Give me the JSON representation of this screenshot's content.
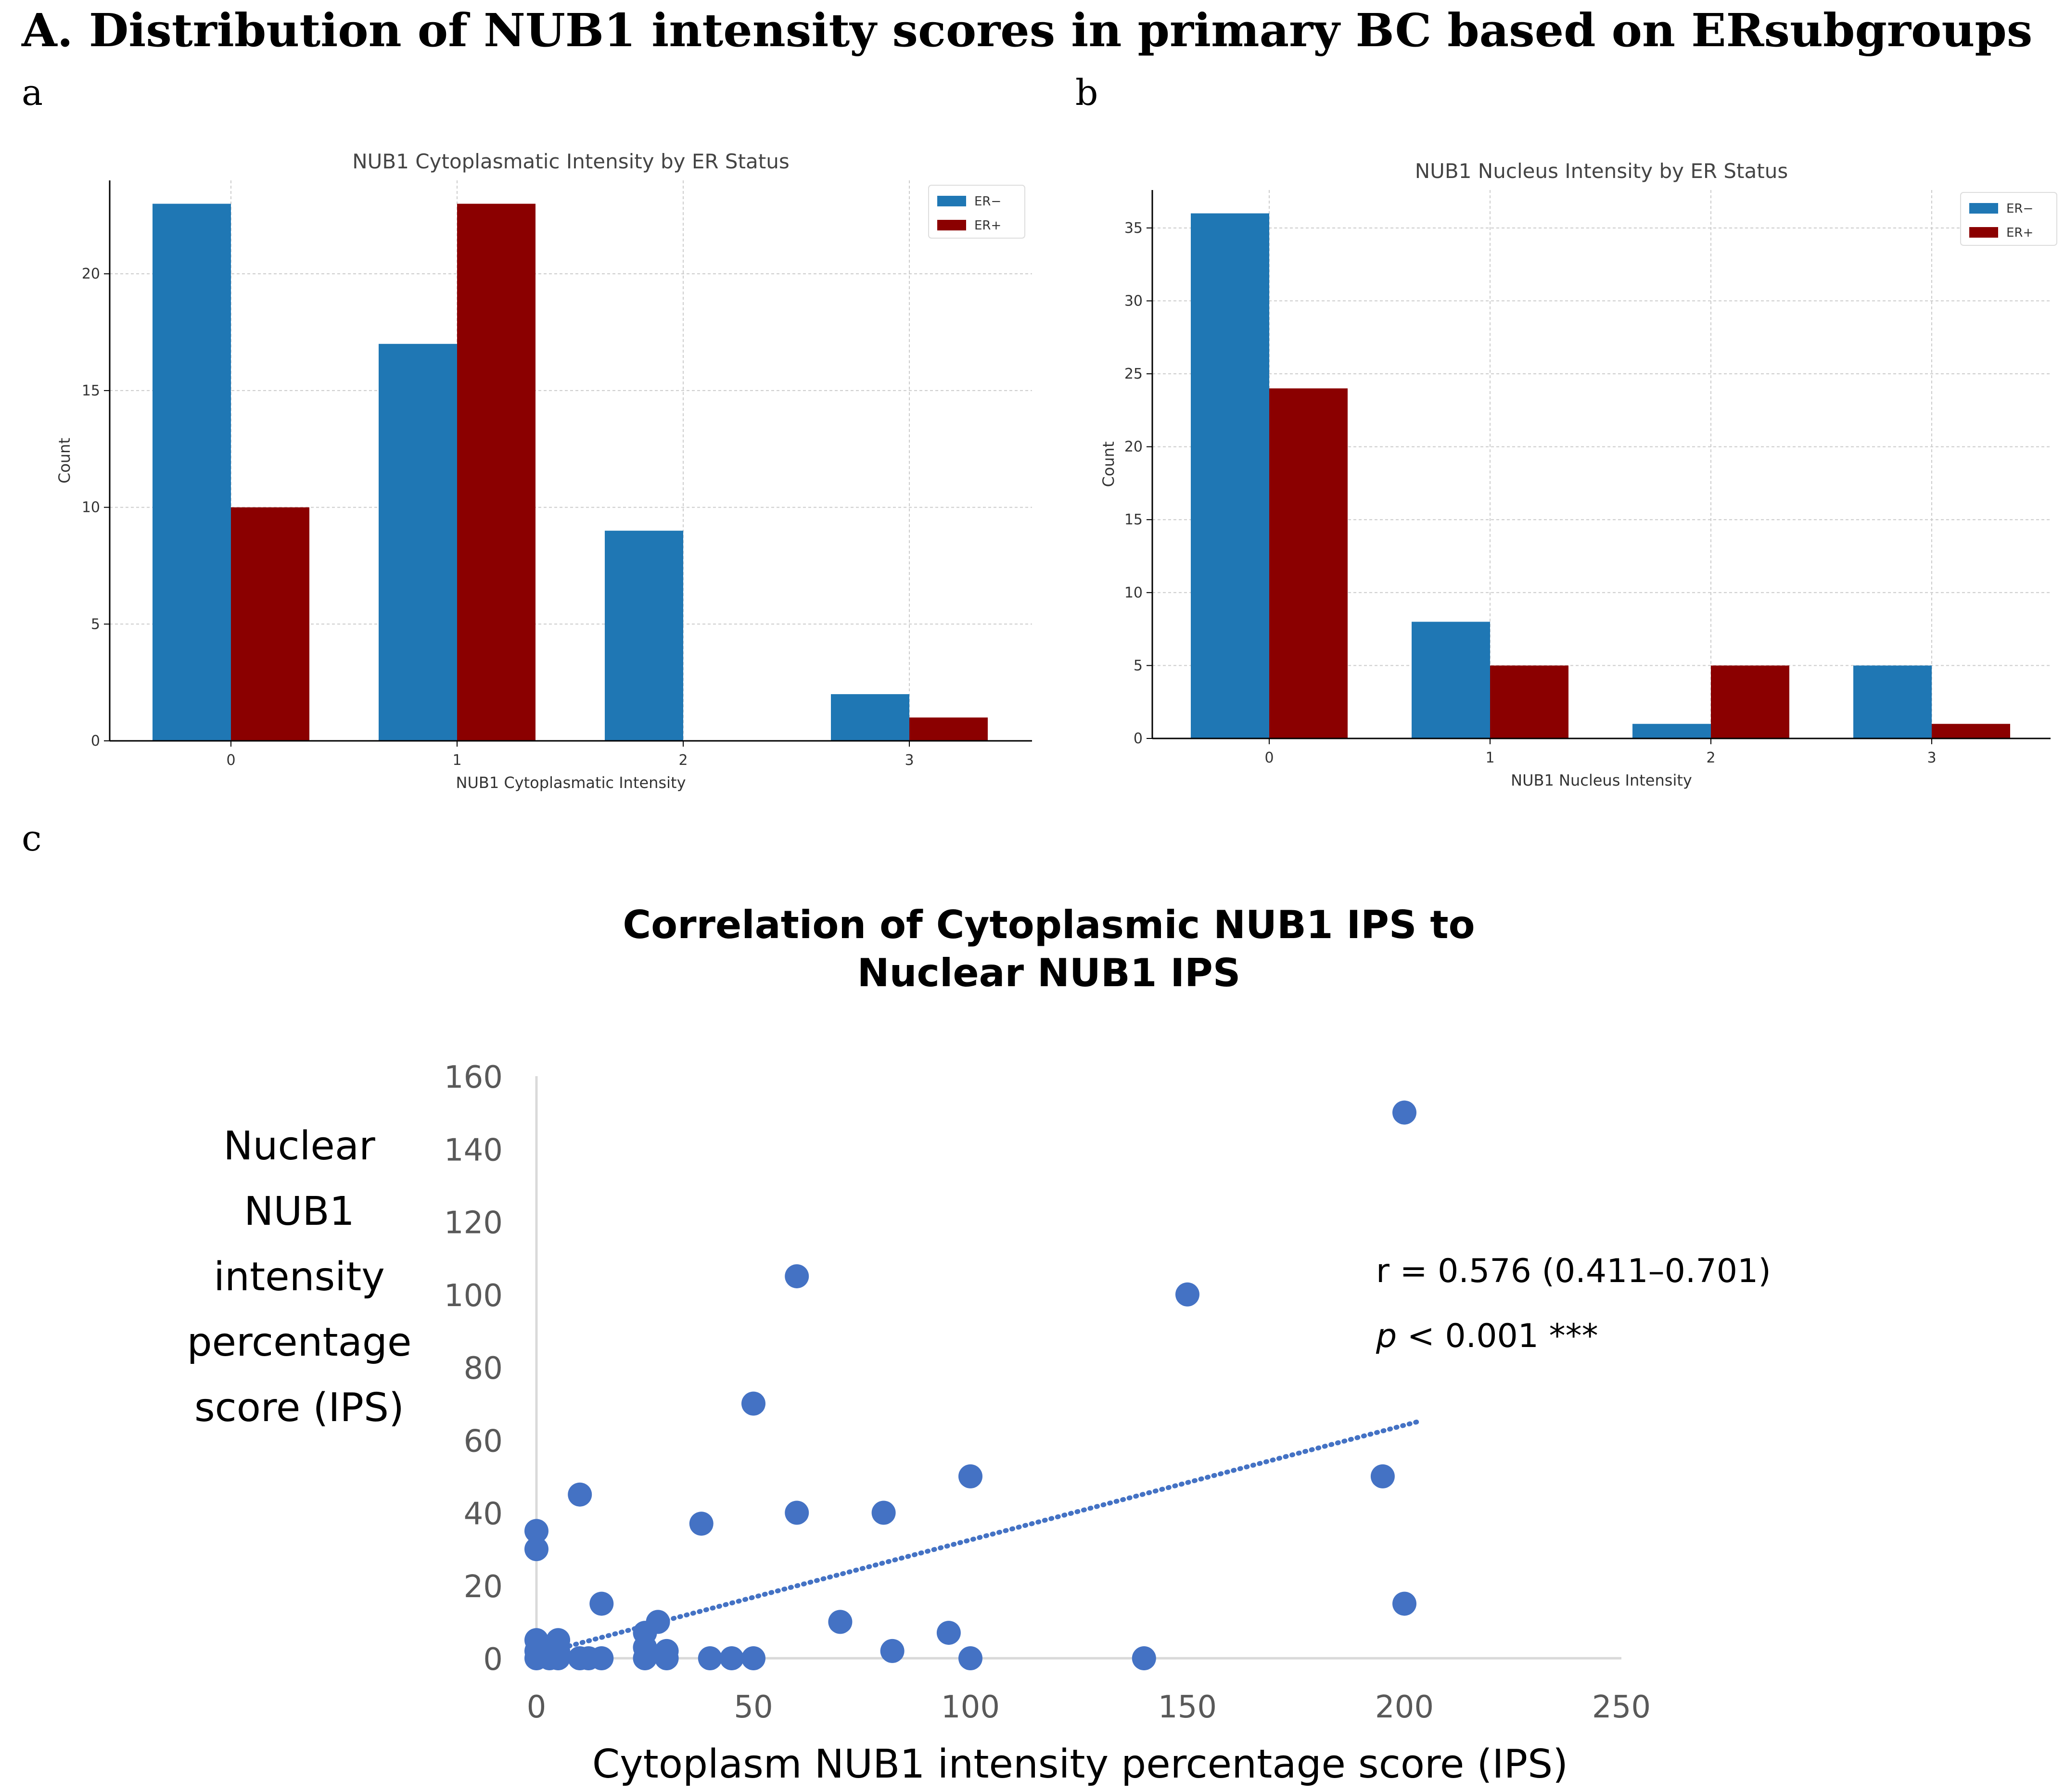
{
  "figure_title": "A. Distribution of NUB1 intensity scores in primary BC based on ERsubgroups",
  "panel_labels": {
    "a": "a",
    "b": "b",
    "c": "c"
  },
  "colors": {
    "er_neg": "#1f77b4",
    "er_pos": "#8b0000",
    "scatter": "#4472c4",
    "axis": "#000000",
    "grid": "#cccccc"
  },
  "chart_data": [
    {
      "id": "a",
      "type": "bar",
      "title": "NUB1 Cytoplasmatic Intensity by ER Status",
      "xlabel": "NUB1 Cytoplasmatic Intensity",
      "ylabel": "Count",
      "categories": [
        "0",
        "1",
        "2",
        "3"
      ],
      "series": [
        {
          "name": "ER−",
          "values": [
            23,
            17,
            9,
            2
          ]
        },
        {
          "name": "ER+",
          "values": [
            10,
            23,
            0,
            1
          ]
        }
      ],
      "ylim": [
        0,
        24
      ],
      "yticks": [
        "0",
        "5",
        "10",
        "15",
        "20"
      ],
      "ytick_values": [
        0,
        5,
        10,
        15,
        20
      ],
      "grid": true,
      "legend_position": "top-right"
    },
    {
      "id": "b",
      "type": "bar",
      "title": "NUB1 Nucleus Intensity by ER Status",
      "xlabel": "NUB1 Nucleus Intensity",
      "ylabel": "Count",
      "categories": [
        "0",
        "1",
        "2",
        "3"
      ],
      "series": [
        {
          "name": "ER−",
          "values": [
            36,
            8,
            1,
            5
          ]
        },
        {
          "name": "ER+",
          "values": [
            24,
            5,
            5,
            1
          ]
        }
      ],
      "ylim": [
        0,
        37.6
      ],
      "yticks": [
        "0",
        "5",
        "10",
        "15",
        "20",
        "25",
        "30",
        "35"
      ],
      "ytick_values": [
        0,
        5,
        10,
        15,
        20,
        25,
        30,
        35
      ],
      "grid": true,
      "legend_position": "top-right"
    },
    {
      "id": "c",
      "type": "scatter",
      "title_lines": [
        "Correlation of Cytoplasmic NUB1 IPS to",
        "Nuclear NUB1 IPS"
      ],
      "xlabel": "Cytoplasm NUB1 intensity percentage score (IPS)",
      "ylabel_lines": [
        "Nuclear",
        "NUB1",
        "intensity",
        "percentage",
        "score (IPS)"
      ],
      "xlim": [
        0,
        250
      ],
      "ylim": [
        0,
        160
      ],
      "xticks": [
        "0",
        "50",
        "100",
        "150",
        "200",
        "250"
      ],
      "xtick_values": [
        0,
        50,
        100,
        150,
        200,
        250
      ],
      "yticks": [
        "0",
        "20",
        "40",
        "60",
        "80",
        "100",
        "120",
        "140",
        "160"
      ],
      "ytick_values": [
        0,
        20,
        40,
        60,
        80,
        100,
        120,
        140,
        160
      ],
      "points": [
        [
          0,
          35
        ],
        [
          0,
          30
        ],
        [
          0,
          5
        ],
        [
          0,
          2
        ],
        [
          0,
          0
        ],
        [
          2,
          1
        ],
        [
          3,
          0
        ],
        [
          5,
          5
        ],
        [
          5,
          2
        ],
        [
          5,
          0
        ],
        [
          10,
          45
        ],
        [
          10,
          0
        ],
        [
          12,
          0
        ],
        [
          15,
          15
        ],
        [
          15,
          0
        ],
        [
          25,
          7
        ],
        [
          25,
          3
        ],
        [
          25,
          0
        ],
        [
          28,
          10
        ],
        [
          30,
          2
        ],
        [
          30,
          0
        ],
        [
          38,
          37
        ],
        [
          40,
          0
        ],
        [
          45,
          0
        ],
        [
          50,
          70
        ],
        [
          50,
          0
        ],
        [
          60,
          105
        ],
        [
          60,
          40
        ],
        [
          70,
          10
        ],
        [
          80,
          40
        ],
        [
          82,
          2
        ],
        [
          95,
          7
        ],
        [
          100,
          50
        ],
        [
          100,
          0
        ],
        [
          140,
          0
        ],
        [
          150,
          100
        ],
        [
          195,
          50
        ],
        [
          200,
          150
        ],
        [
          200,
          15
        ]
      ],
      "trendline": {
        "x": [
          0,
          203
        ],
        "y": [
          1,
          65
        ],
        "style": "dotted"
      },
      "annotation": {
        "r": "r = 0.576 (0.411–0.701)",
        "p_symbol": "p",
        "p_text": " < 0.001 ***"
      }
    }
  ]
}
